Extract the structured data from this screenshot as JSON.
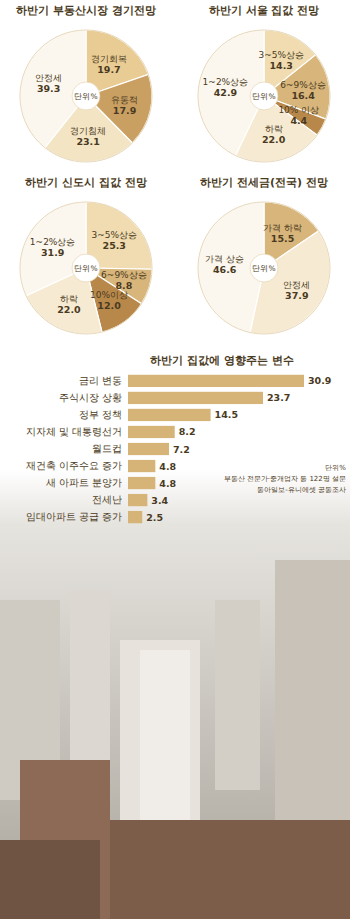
{
  "chart_data": [
    {
      "type": "pie",
      "title": "하반기 부동산시장 경기전망",
      "categories": [
        "경기회복",
        "유동적",
        "경기침체",
        "안정세"
      ],
      "values": [
        19.7,
        17.9,
        23.1,
        39.3
      ],
      "value_labels": [
        "19.7",
        "17.9",
        "23.1",
        "39.3"
      ],
      "colors": [
        "#e9cc94",
        "#c99f62",
        "#f3e4c4",
        "#fcf7ee"
      ],
      "data_labels": true,
      "annotations": [
        "단위%"
      ]
    },
    {
      "type": "pie",
      "title": "하반기 서울 집값 전망",
      "categories": [
        "3~5%상승",
        "6~9%상승",
        "10% 이상",
        "하락",
        "1~2%상승"
      ],
      "values": [
        14.3,
        16.4,
        4.4,
        22.0,
        42.9
      ],
      "value_labels": [
        "14.3",
        "16.4",
        "4.4",
        "22.0",
        "42.9"
      ],
      "colors": [
        "#f0dcb0",
        "#d8b57a",
        "#b8884a",
        "#f6ead2",
        "#fcf7ee"
      ],
      "data_labels": true,
      "annotations": [
        "단위%"
      ]
    },
    {
      "type": "pie",
      "title": "하반기 신도시 집값 전망",
      "categories": [
        "3~5%상승",
        "6~9%상승",
        "10%이상",
        "하락",
        "1~2%상승"
      ],
      "values": [
        25.3,
        8.8,
        12.0,
        22.0,
        31.9
      ],
      "value_labels": [
        "25.3",
        "8.8",
        "12.0",
        "22.0",
        "31.9"
      ],
      "colors": [
        "#f0dcb0",
        "#d8b57a",
        "#b8884a",
        "#f6ead2",
        "#fcf7ee"
      ],
      "data_labels": true,
      "annotations": [
        "단위%"
      ]
    },
    {
      "type": "pie",
      "title": "하반기 전세금(전국) 전망",
      "categories": [
        "가격 하락",
        "안정세",
        "가격 상승"
      ],
      "values": [
        15.5,
        37.9,
        46.6
      ],
      "value_labels": [
        "15.5",
        "37.9",
        "46.6"
      ],
      "colors": [
        "#d8b57a",
        "#f6ead2",
        "#fcf7ee"
      ],
      "data_labels": true,
      "annotations": [
        "단위%"
      ]
    },
    {
      "type": "bar",
      "title": "하반기 집값에 영향주는 변수",
      "orientation": "horizontal",
      "categories": [
        "금리 변동",
        "주식시장 상황",
        "정부 정책",
        "지자체 및 대통령선거",
        "월드컵",
        "재건축 이주수요 증가",
        "새 아파트 분양가",
        "전세난",
        "임대아파트 공급 증가"
      ],
      "values": [
        30.9,
        23.7,
        14.5,
        8.2,
        7.2,
        4.8,
        4.8,
        3.4,
        2.5
      ],
      "color": "#d6b377",
      "data_labels": true,
      "tick_labels": false,
      "annotations": [
        "단위%",
        "부동산 전문가·중개업자 등 122명 설문",
        "동아일보-유니에셋 공동조사"
      ]
    }
  ]
}
